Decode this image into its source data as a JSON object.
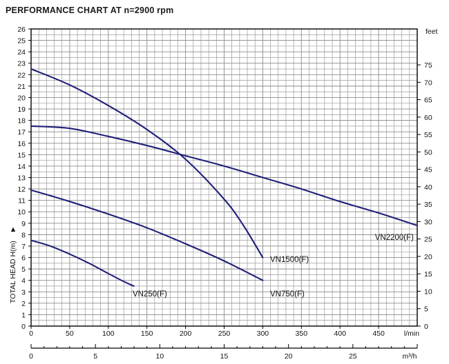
{
  "chart_data": {
    "type": "line",
    "title": "PERFORMANCE CHART AT  n=2900 rpm",
    "ylabel": "TOTAL HEAD H(m)",
    "ylabel_arrow": "►",
    "y_right_unit": "feet",
    "x_unit": "l/min",
    "x_bottom_unit": "m³/h",
    "xlim": [
      0,
      500
    ],
    "ylim": [
      0,
      26
    ],
    "y_ticks": [
      "0",
      "1",
      "2",
      "3",
      "4",
      "5",
      "6",
      "7",
      "8",
      "9",
      "10",
      "11",
      "12",
      "13",
      "14",
      "15",
      "16",
      "17",
      "18",
      "19",
      "20",
      "21",
      "22",
      "23",
      "24",
      "25",
      "26"
    ],
    "x_ticks": [
      "0",
      "50",
      "100",
      "150",
      "200",
      "250",
      "300",
      "350",
      "400",
      "450"
    ],
    "y_right_ticks": [
      "0",
      "5",
      "10",
      "15",
      "20",
      "25",
      "30",
      "35",
      "40",
      "45",
      "50",
      "55",
      "60",
      "65",
      "70",
      "75"
    ],
    "x_bottom_ticks": [
      "0",
      "5",
      "10",
      "15",
      "20",
      "25"
    ],
    "grid": true,
    "colors": {
      "series": "#1f1f7a",
      "grid": "#8a8a8a",
      "axis": "#000000"
    },
    "series": [
      {
        "name": "VN250(F)",
        "x": [
          0,
          25,
          50,
          75,
          100,
          120,
          133
        ],
        "y": [
          7.5,
          7.0,
          6.3,
          5.5,
          4.6,
          3.9,
          3.5
        ]
      },
      {
        "name": "VN750(F)",
        "x": [
          0,
          50,
          100,
          150,
          200,
          250,
          300
        ],
        "y": [
          11.9,
          10.9,
          9.8,
          8.6,
          7.2,
          5.7,
          4.0
        ]
      },
      {
        "name": "VN1500(F)",
        "x": [
          0,
          50,
          100,
          150,
          200,
          250,
          275,
          300
        ],
        "y": [
          22.5,
          21.1,
          19.3,
          17.2,
          14.6,
          11.1,
          8.8,
          6.0
        ]
      },
      {
        "name": "VN2200(F)",
        "x": [
          0,
          50,
          100,
          150,
          200,
          250,
          300,
          350,
          400,
          450,
          500
        ],
        "y": [
          17.5,
          17.3,
          16.6,
          15.8,
          14.9,
          14.0,
          13.0,
          12.0,
          10.9,
          9.9,
          8.8
        ]
      }
    ]
  }
}
